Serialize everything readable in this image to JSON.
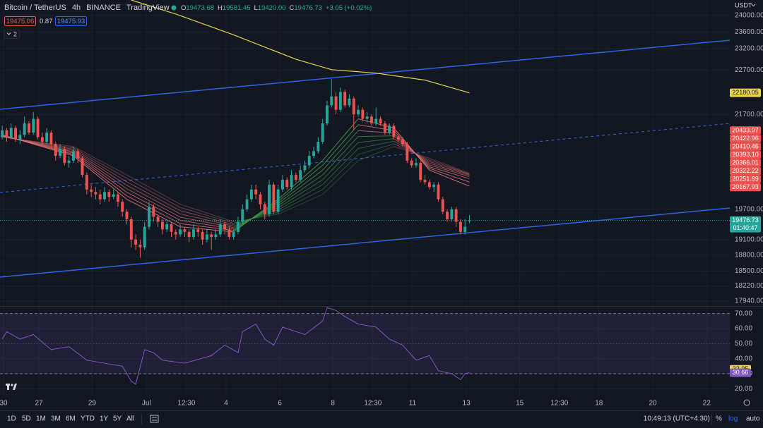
{
  "header": {
    "symbol": "Bitcoin / TetherUS",
    "interval": "4h",
    "exchange": "BINANCE",
    "source": "TradingView",
    "ohlc": [
      {
        "key": "O",
        "value": "19473.68"
      },
      {
        "key": "H",
        "value": "19581.45"
      },
      {
        "key": "L",
        "value": "19420.00"
      },
      {
        "key": "C",
        "value": "19476.73"
      }
    ],
    "change": "+3.05 (+0.02%)",
    "bid": "19475.06",
    "spread": "0.87",
    "ask": "19475.93",
    "indicator_count": "2",
    "currency": "USDT"
  },
  "toolbar": {
    "ranges": [
      "1D",
      "5D",
      "1M",
      "3M",
      "6M",
      "YTD",
      "1Y",
      "5Y",
      "All"
    ],
    "clock": "10:49:13 (UTC+4:30)",
    "scale_buttons": [
      "%",
      "log",
      "auto"
    ]
  },
  "chart_data": {
    "type": "candlestick",
    "log_scale": true,
    "grid": true,
    "up_color": "#26a69a",
    "down_color": "#ef5350",
    "xlim": [
      -0.5,
      163.5
    ],
    "xticks": [
      {
        "value": 0.3,
        "label": "30"
      },
      {
        "value": 8.25,
        "label": "27"
      },
      {
        "value": 20.2,
        "label": "29"
      },
      {
        "value": 32.4,
        "label": "Jul"
      },
      {
        "value": 41.4,
        "label": "12:30"
      },
      {
        "value": 50.3,
        "label": "4"
      },
      {
        "value": 62.4,
        "label": "6"
      },
      {
        "value": 74.3,
        "label": "8"
      },
      {
        "value": 83.3,
        "label": "12:30"
      },
      {
        "value": 92.2,
        "label": "11"
      },
      {
        "value": 104.3,
        "label": "13"
      },
      {
        "value": 116.3,
        "label": "15"
      },
      {
        "value": 125.2,
        "label": "12:30"
      },
      {
        "value": 134.1,
        "label": "18"
      },
      {
        "value": 146.2,
        "label": "20"
      },
      {
        "value": 158.3,
        "label": "22"
      }
    ],
    "ylim": [
      17850,
      24380
    ],
    "yticks": [
      {
        "value": 24000,
        "label": "24000.00"
      },
      {
        "value": 23600,
        "label": "23600.00"
      },
      {
        "value": 23200,
        "label": "23200.00"
      },
      {
        "value": 22700,
        "label": "22700.00"
      },
      {
        "value": 21700,
        "label": "21700.00"
      },
      {
        "value": 19700,
        "label": "19700.00"
      },
      {
        "value": 19100,
        "label": "19100.00"
      },
      {
        "value": 18800,
        "label": "18800.00"
      },
      {
        "value": 18500,
        "label": "18500.00"
      },
      {
        "value": 18220,
        "label": "18220.00"
      },
      {
        "value": 17940,
        "label": "17940.00"
      }
    ],
    "open": [
      21200,
      21350,
      21200,
      21400,
      21150,
      21250,
      21500,
      21300,
      21600,
      21200,
      21100,
      21300,
      21050,
      20800,
      20950,
      20650,
      20700,
      20900,
      20750,
      20400,
      20100,
      20050,
      20000,
      19900,
      20050,
      19950,
      20000,
      19850,
      19650,
      19500,
      19100,
      19000,
      18950,
      19350,
      19750,
      19550,
      19450,
      19300,
      19400,
      19250,
      19200,
      19300,
      19250,
      19150,
      19300,
      19250,
      19100,
      19200,
      19150,
      19200,
      19400,
      19300,
      19150,
      19250,
      19450,
      19700,
      19900,
      20100,
      20000,
      19800,
      19600,
      20200,
      19650,
      20100,
      20300,
      20150,
      20400,
      20300,
      20500,
      20600,
      20800,
      20900,
      21100,
      21500,
      21900,
      22100,
      21800,
      22200,
      21900,
      22050,
      21700,
      21800,
      21600,
      21650,
      21500,
      21600,
      21500,
      21300,
      21450,
      21200,
      21150,
      21050,
      20700,
      20600,
      20650,
      20300,
      20250,
      20150,
      20200,
      19900,
      19650,
      19500,
      19700,
      19450,
      19250,
      19473.68
    ],
    "high": [
      21450,
      21400,
      21500,
      21450,
      21350,
      21650,
      21550,
      21750,
      21650,
      21300,
      21400,
      21350,
      21100,
      21050,
      21000,
      20800,
      21000,
      20950,
      20800,
      20450,
      20200,
      20150,
      20100,
      20150,
      20100,
      20100,
      20050,
      19900,
      19700,
      19550,
      19200,
      19100,
      19450,
      19850,
      19800,
      19600,
      19500,
      19500,
      19450,
      19300,
      19400,
      19350,
      19300,
      19400,
      19350,
      19300,
      19300,
      19250,
      19300,
      19500,
      19450,
      19350,
      19300,
      19550,
      19800,
      20000,
      20200,
      20200,
      20050,
      19850,
      20300,
      20250,
      20200,
      20400,
      20350,
      20500,
      20450,
      20600,
      20700,
      20900,
      21000,
      21200,
      21600,
      22000,
      22500,
      22200,
      22300,
      22250,
      22150,
      22100,
      21900,
      21850,
      21750,
      21700,
      21850,
      21650,
      21550,
      21500,
      21500,
      21250,
      21200,
      21100,
      20750,
      20750,
      20700,
      20400,
      20300,
      20250,
      20250,
      19950,
      19700,
      19750,
      19750,
      19500,
      19500,
      19581.45
    ],
    "low": [
      21150,
      21100,
      21150,
      21100,
      21050,
      21200,
      21250,
      21250,
      21150,
      21000,
      21050,
      20950,
      20700,
      20750,
      20600,
      20550,
      20650,
      20650,
      20350,
      20000,
      19950,
      19900,
      19800,
      19850,
      19850,
      19900,
      19750,
      19550,
      19400,
      18950,
      18900,
      18750,
      18900,
      19300,
      19450,
      19350,
      19200,
      19250,
      19150,
      19100,
      19150,
      19150,
      19050,
      19100,
      19150,
      19000,
      19050,
      18900,
      19100,
      19150,
      19200,
      19100,
      19100,
      19200,
      19400,
      19650,
      19850,
      19900,
      19700,
      19500,
      19550,
      19600,
      19600,
      20050,
      20100,
      20100,
      20250,
      20250,
      20450,
      20550,
      20750,
      20850,
      21050,
      21450,
      21850,
      21700,
      21750,
      21850,
      21850,
      21350,
      21650,
      21550,
      21500,
      21450,
      21450,
      21450,
      21250,
      21250,
      21150,
      21100,
      21000,
      20650,
      20550,
      20550,
      20250,
      20200,
      20100,
      20050,
      19850,
      19600,
      19450,
      19450,
      19350,
      19200,
      19200,
      19420
    ],
    "close": [
      21350,
      21200,
      21400,
      21150,
      21250,
      21500,
      21300,
      21600,
      21200,
      21100,
      21300,
      21050,
      20800,
      20950,
      20650,
      20700,
      20900,
      20750,
      20400,
      20100,
      20050,
      20000,
      19900,
      20050,
      19950,
      20000,
      19850,
      19650,
      19500,
      19100,
      19000,
      18950,
      19350,
      19750,
      19550,
      19450,
      19300,
      19400,
      19250,
      19200,
      19300,
      19250,
      19150,
      19300,
      19250,
      19100,
      19200,
      19150,
      19200,
      19400,
      19300,
      19150,
      19250,
      19450,
      19700,
      19900,
      20100,
      20000,
      19800,
      19600,
      20200,
      19650,
      20100,
      20300,
      20150,
      20400,
      20300,
      20500,
      20600,
      20800,
      20900,
      21100,
      21500,
      21900,
      22100,
      21800,
      22200,
      21900,
      22050,
      21700,
      21800,
      21600,
      21650,
      21500,
      21600,
      21500,
      21300,
      21450,
      21200,
      21150,
      21050,
      20700,
      20600,
      20650,
      20300,
      20250,
      20150,
      20200,
      19900,
      19650,
      19500,
      19700,
      19450,
      19250,
      19350,
      19476.73
    ],
    "price_line": {
      "value": 19476.73,
      "label": "19476.73",
      "countdown": "01:40:47"
    },
    "ma": {
      "color": "#e8d44d",
      "x": [
        29,
        39,
        52,
        66,
        74,
        84,
        95,
        105
      ],
      "values": [
        24380,
        24034,
        23530,
        22950,
        22710,
        22630,
        22470,
        22180.05
      ],
      "last_label": "22180.05"
    },
    "ribbon_up_color": "#43a047",
    "ribbon_down_color": "#e57373",
    "ribbon_x": [
      0,
      16,
      28,
      40,
      52,
      62,
      72,
      80,
      88,
      96,
      105
    ],
    "ribbon": [
      {
        "values": [
          21200,
          21000,
          20400,
          19800,
          19450,
          19600,
          20000,
          20700,
          21000,
          20750,
          20433.97
        ],
        "last_label": "20433.97"
      },
      {
        "values": [
          21207,
          20971,
          20329,
          19736,
          19421,
          19643,
          20100,
          20829,
          21057,
          20714,
          20422.96
        ],
        "last_label": "20422.96"
      },
      {
        "values": [
          21214,
          20943,
          20257,
          19671,
          19393,
          19686,
          20200,
          20957,
          21114,
          20679,
          20410.46
        ],
        "last_label": "20410.46"
      },
      {
        "values": [
          21221,
          20914,
          20186,
          19607,
          19364,
          19729,
          20300,
          21086,
          21171,
          20643,
          20393.1
        ],
        "last_label": "20393.10"
      },
      {
        "values": [
          21229,
          20886,
          20114,
          19543,
          19336,
          19771,
          20400,
          21214,
          21229,
          20607,
          20366.01
        ],
        "last_label": "20366.01"
      },
      {
        "values": [
          21236,
          20857,
          20043,
          19479,
          19307,
          19814,
          20500,
          21343,
          21286,
          20571,
          20322.22
        ],
        "last_label": "20322.22"
      },
      {
        "values": [
          21243,
          20829,
          19971,
          19414,
          19279,
          19857,
          20600,
          21471,
          21343,
          20536,
          20251.89
        ],
        "last_label": "20251.89"
      },
      {
        "values": [
          21250,
          20800,
          19900,
          19350,
          19250,
          19900,
          20700,
          21600,
          21400,
          20500,
          20167.93
        ],
        "last_label": "20167.93"
      }
    ],
    "rsi": {
      "color": "#7e57c2",
      "ylim": [
        15,
        75
      ],
      "yticks": [
        {
          "value": 70,
          "label": "70.00"
        },
        {
          "value": 60,
          "label": "60.00"
        },
        {
          "value": 50,
          "label": "50.00"
        },
        {
          "value": 40,
          "label": "40.00"
        },
        {
          "value": 30,
          "label": "30.00"
        },
        {
          "value": 20,
          "label": "20.00"
        }
      ],
      "bands": {
        "upper": 70,
        "middle": 50,
        "lower": 30
      },
      "x": [
        0,
        1,
        4,
        7,
        11,
        15,
        19,
        23,
        27,
        29,
        30,
        32,
        34,
        36,
        41,
        47,
        50,
        53,
        54,
        57,
        59,
        61,
        63,
        68,
        72,
        73,
        75,
        77,
        80,
        84,
        87,
        90,
        93,
        96,
        98,
        101,
        103,
        104,
        105
      ],
      "values": [
        53,
        58,
        53,
        56,
        46,
        48,
        39,
        37,
        35,
        25,
        23,
        46,
        44,
        39,
        37,
        42,
        49,
        44,
        58,
        63,
        53,
        49,
        61,
        56,
        65,
        74,
        72,
        68,
        63,
        61,
        53,
        49,
        39,
        42,
        32,
        30,
        26,
        30,
        30.66
      ],
      "last_label": "30.66",
      "ma_last": {
        "value": 32.95,
        "label": "32.95"
      }
    }
  }
}
